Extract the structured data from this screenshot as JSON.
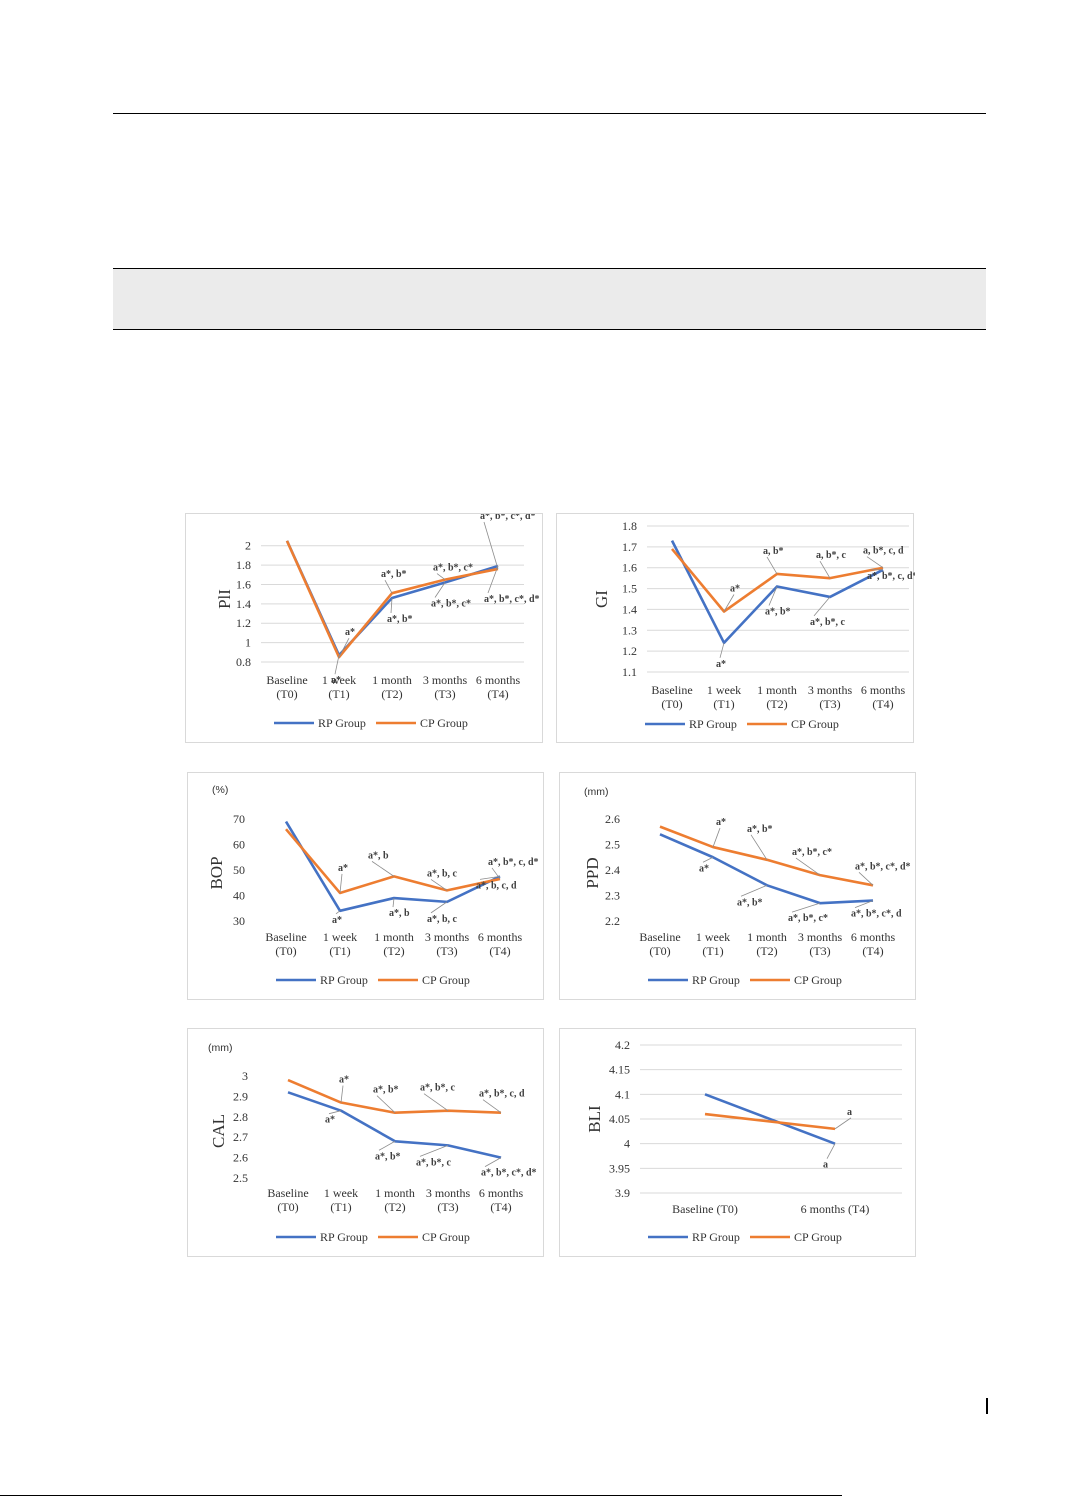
{
  "chart_data": [
    {
      "type": "line",
      "ylabel": "PlI",
      "unit": "",
      "categories": [
        [
          "Baseline",
          "(T0)"
        ],
        [
          "1 week",
          "(T1)"
        ],
        [
          "1 month",
          "(T2)"
        ],
        [
          "3 months",
          "(T3)"
        ],
        [
          "6 months",
          "(T4)"
        ]
      ],
      "yticks": [
        "0.8",
        "1",
        "1.2",
        "1.4",
        "1.6",
        "1.8",
        "2"
      ],
      "ylim": [
        0.8,
        2.1
      ],
      "grid": true,
      "series": [
        {
          "name": "RP Group",
          "color": "#4472c4",
          "values": [
            2.05,
            0.87,
            1.46,
            1.62,
            1.79
          ],
          "labels": [
            "",
            "a*",
            "a*, b*",
            "a*, b*, c*",
            "a*, b*, c*, d*"
          ]
        },
        {
          "name": "CP Group",
          "color": "#ed7d31",
          "values": [
            2.05,
            0.85,
            1.51,
            1.65,
            1.76
          ],
          "labels": [
            "",
            "a*",
            "a*, b*",
            "a*, b*, c*",
            "a*, b*, c*, d*"
          ]
        }
      ]
    },
    {
      "type": "line",
      "ylabel": "GI",
      "unit": "",
      "categories": [
        [
          "Baseline",
          "(T0)"
        ],
        [
          "1 week",
          "(T1)"
        ],
        [
          "1 month",
          "(T2)"
        ],
        [
          "3 months",
          "(T3)"
        ],
        [
          "6 months",
          "(T4)"
        ]
      ],
      "yticks": [
        "1.1",
        "1.2",
        "1.3",
        "1.4",
        "1.5",
        "1.6",
        "1.7",
        "1.8"
      ],
      "ylim": [
        1.1,
        1.8
      ],
      "grid": true,
      "series": [
        {
          "name": "RP Group",
          "color": "#4472c4",
          "values": [
            1.73,
            1.24,
            1.51,
            1.46,
            1.59
          ],
          "labels": [
            "",
            "a*",
            "a*, b*",
            "a*, b*, c",
            "a*, b*, c, d*"
          ]
        },
        {
          "name": "CP Group",
          "color": "#ed7d31",
          "values": [
            1.69,
            1.39,
            1.57,
            1.55,
            1.6
          ],
          "labels": [
            "",
            "a*",
            "a, b*",
            "a, b*, c",
            "a, b*, c, d"
          ]
        }
      ]
    },
    {
      "type": "line",
      "ylabel": "BOP",
      "unit": "(%)",
      "categories": [
        [
          "Baseline",
          "(T0)"
        ],
        [
          "1 week",
          "(T1)"
        ],
        [
          "1 month",
          "(T2)"
        ],
        [
          "3 months",
          "(T3)"
        ],
        [
          "6 months",
          "(T4)"
        ]
      ],
      "yticks": [
        "30",
        "40",
        "50",
        "60",
        "70"
      ],
      "ylim": [
        30,
        70
      ],
      "grid": false,
      "series": [
        {
          "name": "RP Group",
          "color": "#4472c4",
          "values": [
            69,
            34,
            39,
            37.5,
            47.5
          ],
          "labels": [
            "",
            "a*",
            "a*, b",
            "a*, b, c",
            "a*, b, c, d"
          ]
        },
        {
          "name": "CP Group",
          "color": "#ed7d31",
          "values": [
            66,
            41,
            47.5,
            42,
            46.5
          ],
          "labels": [
            "",
            "a*",
            "a*, b",
            "a*, b, c",
            "a*, b*, c, d*"
          ]
        }
      ]
    },
    {
      "type": "line",
      "ylabel": "PPD",
      "unit": "(mm)",
      "categories": [
        [
          "Baseline",
          "(T0)"
        ],
        [
          "1 week",
          "(T1)"
        ],
        [
          "1 month",
          "(T2)"
        ],
        [
          "3 months",
          "(T3)"
        ],
        [
          "6 months",
          "(T4)"
        ]
      ],
      "yticks": [
        "2.2",
        "2.3",
        "2.4",
        "2.5",
        "2.6"
      ],
      "ylim": [
        2.2,
        2.6
      ],
      "grid": false,
      "series": [
        {
          "name": "RP Group",
          "color": "#4472c4",
          "values": [
            2.54,
            2.45,
            2.34,
            2.27,
            2.28
          ],
          "labels": [
            "",
            "a*",
            "a*, b*",
            "a*, b*, c*",
            "a*, b*, c*, d"
          ]
        },
        {
          "name": "CP Group",
          "color": "#ed7d31",
          "values": [
            2.57,
            2.49,
            2.44,
            2.38,
            2.34
          ],
          "labels": [
            "",
            "a*",
            "a*, b*",
            "a*, b*, c*",
            "a*, b*, c*, d*"
          ]
        }
      ]
    },
    {
      "type": "line",
      "ylabel": "CAL",
      "unit": "(mm)",
      "categories": [
        [
          "Baseline",
          "(T0)"
        ],
        [
          "1 week",
          "(T1)"
        ],
        [
          "1 month",
          "(T2)"
        ],
        [
          "3 months",
          "(T3)"
        ],
        [
          "6 months",
          "(T4)"
        ]
      ],
      "yticks": [
        "2.5",
        "2.6",
        "2.7",
        "2.8",
        "2.9",
        "3"
      ],
      "ylim": [
        2.5,
        3.0
      ],
      "grid": false,
      "series": [
        {
          "name": "RP Group",
          "color": "#4472c4",
          "values": [
            2.92,
            2.83,
            2.68,
            2.66,
            2.6
          ],
          "labels": [
            "",
            "a*",
            "a*, b*",
            "a*, b*, c",
            "a*, b*, c*, d*"
          ]
        },
        {
          "name": "CP Group",
          "color": "#ed7d31",
          "values": [
            2.98,
            2.87,
            2.82,
            2.83,
            2.82
          ],
          "labels": [
            "",
            "a*",
            "a*, b*",
            "a*, b*, c",
            "a*, b*, c, d"
          ]
        }
      ]
    },
    {
      "type": "line",
      "ylabel": "BLI",
      "unit": "",
      "categories": [
        [
          "Baseline (T0)"
        ],
        [
          "6 months (T4)"
        ]
      ],
      "yticks": [
        "3.9",
        "3.95",
        "4",
        "4.05",
        "4.1",
        "4.15",
        "4.2"
      ],
      "ylim": [
        3.9,
        4.2
      ],
      "grid": true,
      "series": [
        {
          "name": "RP Group",
          "color": "#4472c4",
          "values": [
            4.1,
            4.0
          ],
          "labels": [
            "",
            "a"
          ]
        },
        {
          "name": "CP Group",
          "color": "#ed7d31",
          "values": [
            4.06,
            4.03
          ],
          "labels": [
            "",
            "a"
          ]
        }
      ]
    }
  ]
}
